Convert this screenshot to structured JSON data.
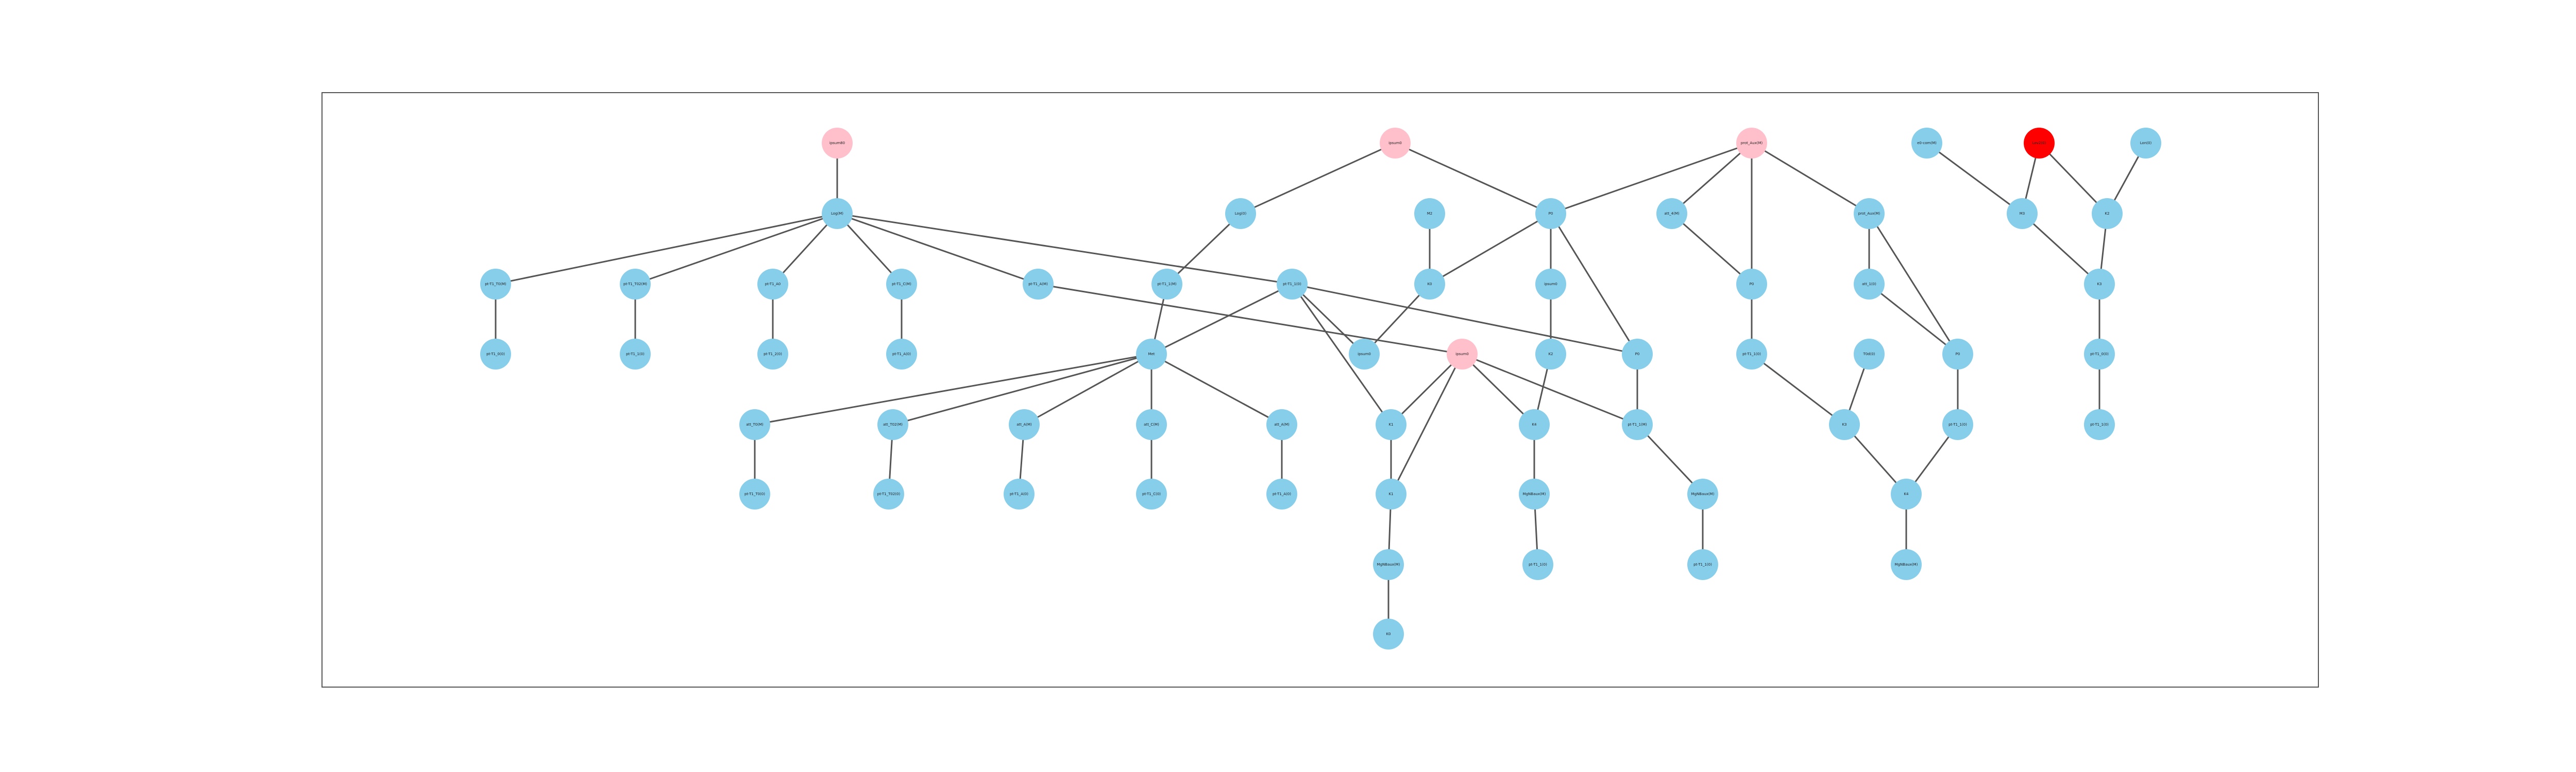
{
  "graph": {
    "colors": {
      "default": "#87CEEB",
      "root": "#FFC0CB",
      "highlight": "#FF0000",
      "edge": "#555555"
    },
    "nodes": [
      {
        "id": "n1",
        "label": "ipsum80",
        "kind": "root"
      },
      {
        "id": "n2",
        "label": "ipsum0",
        "kind": "root"
      },
      {
        "id": "n3",
        "label": "prot_Aux(M)",
        "kind": "root"
      },
      {
        "id": "n4",
        "label": "e0-com(M)",
        "kind": "default"
      },
      {
        "id": "n5",
        "label": "Lov2(0)",
        "kind": "highlight"
      },
      {
        "id": "n6",
        "label": "Lon(0)",
        "kind": "default"
      },
      {
        "id": "n7",
        "label": "Log(M)",
        "kind": "default"
      },
      {
        "id": "n8",
        "label": "Log(0)",
        "kind": "default"
      },
      {
        "id": "n9",
        "label": "M2",
        "kind": "default"
      },
      {
        "id": "n10",
        "label": "P0",
        "kind": "default"
      },
      {
        "id": "n11",
        "label": "att_4(M)",
        "kind": "default"
      },
      {
        "id": "n12",
        "label": "prot_Aux(M)",
        "kind": "default"
      },
      {
        "id": "n13",
        "label": "M3",
        "kind": "default"
      },
      {
        "id": "n14",
        "label": "K2",
        "kind": "default"
      },
      {
        "id": "n15",
        "label": "pt-T1_T0(M)",
        "kind": "default"
      },
      {
        "id": "n16",
        "label": "pt-T1_T02(M)",
        "kind": "default"
      },
      {
        "id": "n17",
        "label": "pt-T1_A0",
        "kind": "default"
      },
      {
        "id": "n18",
        "label": "pt-T1_C(M)",
        "kind": "default"
      },
      {
        "id": "n19",
        "label": "pt-T1_A(M)",
        "kind": "default"
      },
      {
        "id": "n20",
        "label": "pt-T1_1(M)",
        "kind": "default"
      },
      {
        "id": "n21",
        "label": "pt-T1_1(0)",
        "kind": "default"
      },
      {
        "id": "n22",
        "label": "K0",
        "kind": "default"
      },
      {
        "id": "n23",
        "label": "ipsum0",
        "kind": "default"
      },
      {
        "id": "n24",
        "label": "P0",
        "kind": "default"
      },
      {
        "id": "n25",
        "label": "att_1(0)",
        "kind": "default"
      },
      {
        "id": "n26",
        "label": "K3",
        "kind": "default"
      },
      {
        "id": "n27",
        "label": "pt-T1_0(0)",
        "kind": "default"
      },
      {
        "id": "n28",
        "label": "pt-T1_0(0)",
        "kind": "default"
      },
      {
        "id": "n29",
        "label": "pt-T1_1(0)",
        "kind": "default"
      },
      {
        "id": "n30",
        "label": "pt-T1_2(0)",
        "kind": "default"
      },
      {
        "id": "n31",
        "label": "pt-T1_A(0)",
        "kind": "default"
      },
      {
        "id": "n32",
        "label": "Met",
        "kind": "default"
      },
      {
        "id": "n33",
        "label": "ipsum0",
        "kind": "default"
      },
      {
        "id": "n34",
        "label": "ipsum0",
        "kind": "root"
      },
      {
        "id": "n35",
        "label": "K2",
        "kind": "default"
      },
      {
        "id": "n36",
        "label": "P0",
        "kind": "default"
      },
      {
        "id": "n37",
        "label": "pt-T1_1(0)",
        "kind": "default"
      },
      {
        "id": "n38",
        "label": "T0d(0)",
        "kind": "default"
      },
      {
        "id": "n39",
        "label": "P0",
        "kind": "default"
      },
      {
        "id": "n40",
        "label": "att_T0(M)",
        "kind": "default"
      },
      {
        "id": "n41",
        "label": "att_T02(M)",
        "kind": "default"
      },
      {
        "id": "n42",
        "label": "att_A(M)",
        "kind": "default"
      },
      {
        "id": "n43",
        "label": "att_C(M)",
        "kind": "default"
      },
      {
        "id": "n44",
        "label": "att_A(M)",
        "kind": "default"
      },
      {
        "id": "n45",
        "label": "K1",
        "kind": "default"
      },
      {
        "id": "n46",
        "label": "K4",
        "kind": "default"
      },
      {
        "id": "n47",
        "label": "K3",
        "kind": "default"
      },
      {
        "id": "n48",
        "label": "K1",
        "kind": "default"
      },
      {
        "id": "n49",
        "label": "pt-T1_1(M)",
        "kind": "default"
      },
      {
        "id": "n50",
        "label": "pt-T1_1(0)",
        "kind": "default"
      },
      {
        "id": "n51",
        "label": "pt-T1_T0(0)",
        "kind": "default"
      },
      {
        "id": "n52",
        "label": "pt-T1_T02(0)",
        "kind": "default"
      },
      {
        "id": "n53",
        "label": "pt-T1_A(0)",
        "kind": "default"
      },
      {
        "id": "n54",
        "label": "pt-T1_C(0)",
        "kind": "default"
      },
      {
        "id": "n55",
        "label": "pt-T1_A(0)",
        "kind": "default"
      },
      {
        "id": "n56",
        "label": "K4",
        "kind": "default"
      },
      {
        "id": "n57",
        "label": "MgNBaux(M)",
        "kind": "default"
      },
      {
        "id": "n58",
        "label": "MgNBaux(M)",
        "kind": "default"
      },
      {
        "id": "n59",
        "label": "K0",
        "kind": "default"
      },
      {
        "id": "n60",
        "label": "MgNBaux(M)",
        "kind": "default"
      },
      {
        "id": "n61",
        "label": "pt-T1_1(0)",
        "kind": "default"
      },
      {
        "id": "n62",
        "label": "pt-T1_1(0)",
        "kind": "default"
      },
      {
        "id": "n63",
        "label": "MgNBaux(M)",
        "kind": "default"
      },
      {
        "id": "n64",
        "label": "pt-T1_1(0)",
        "kind": "default"
      }
    ],
    "edges": [
      [
        "n1",
        "n7"
      ],
      [
        "n2",
        "n8"
      ],
      [
        "n2",
        "n10"
      ],
      [
        "n3",
        "n10"
      ],
      [
        "n3",
        "n11"
      ],
      [
        "n3",
        "n12"
      ],
      [
        "n3",
        "n24"
      ],
      [
        "n4",
        "n13"
      ],
      [
        "n5",
        "n13"
      ],
      [
        "n5",
        "n14"
      ],
      [
        "n6",
        "n14"
      ],
      [
        "n13",
        "n26"
      ],
      [
        "n14",
        "n26"
      ],
      [
        "n7",
        "n15"
      ],
      [
        "n7",
        "n16"
      ],
      [
        "n7",
        "n17"
      ],
      [
        "n7",
        "n18"
      ],
      [
        "n7",
        "n19"
      ],
      [
        "n7",
        "n21"
      ],
      [
        "n8",
        "n20"
      ],
      [
        "n9",
        "n22"
      ],
      [
        "n10",
        "n22"
      ],
      [
        "n10",
        "n23"
      ],
      [
        "n10",
        "n36"
      ],
      [
        "n11",
        "n24"
      ],
      [
        "n12",
        "n25"
      ],
      [
        "n12",
        "n39"
      ],
      [
        "n26",
        "n27"
      ],
      [
        "n24",
        "n37"
      ],
      [
        "n25",
        "n39"
      ],
      [
        "n20",
        "n32"
      ],
      [
        "n21",
        "n32"
      ],
      [
        "n21",
        "n33"
      ],
      [
        "n21",
        "n45"
      ],
      [
        "n21",
        "n36"
      ],
      [
        "n22",
        "n33"
      ],
      [
        "n23",
        "n35"
      ],
      [
        "n15",
        "n28"
      ],
      [
        "n16",
        "n29"
      ],
      [
        "n17",
        "n30"
      ],
      [
        "n18",
        "n31"
      ],
      [
        "n19",
        "n34"
      ],
      [
        "n34",
        "n45"
      ],
      [
        "n34",
        "n48"
      ],
      [
        "n34",
        "n46"
      ],
      [
        "n34",
        "n49"
      ],
      [
        "n35",
        "n46"
      ],
      [
        "n36",
        "n49"
      ],
      [
        "n37",
        "n47"
      ],
      [
        "n38",
        "n47"
      ],
      [
        "n39",
        "n50"
      ],
      [
        "n47",
        "n56"
      ],
      [
        "n50",
        "n56"
      ],
      [
        "n56",
        "n63"
      ],
      [
        "n32",
        "n40"
      ],
      [
        "n32",
        "n41"
      ],
      [
        "n32",
        "n42"
      ],
      [
        "n32",
        "n43"
      ],
      [
        "n32",
        "n44"
      ],
      [
        "n40",
        "n51"
      ],
      [
        "n41",
        "n52"
      ],
      [
        "n42",
        "n53"
      ],
      [
        "n43",
        "n54"
      ],
      [
        "n44",
        "n55"
      ],
      [
        "n45",
        "n48"
      ],
      [
        "n48",
        "n57"
      ],
      [
        "n57",
        "n59"
      ],
      [
        "n46",
        "n58"
      ],
      [
        "n58",
        "n61"
      ],
      [
        "n49",
        "n60"
      ],
      [
        "n60",
        "n62"
      ],
      [
        "n27",
        "n64"
      ]
    ]
  }
}
